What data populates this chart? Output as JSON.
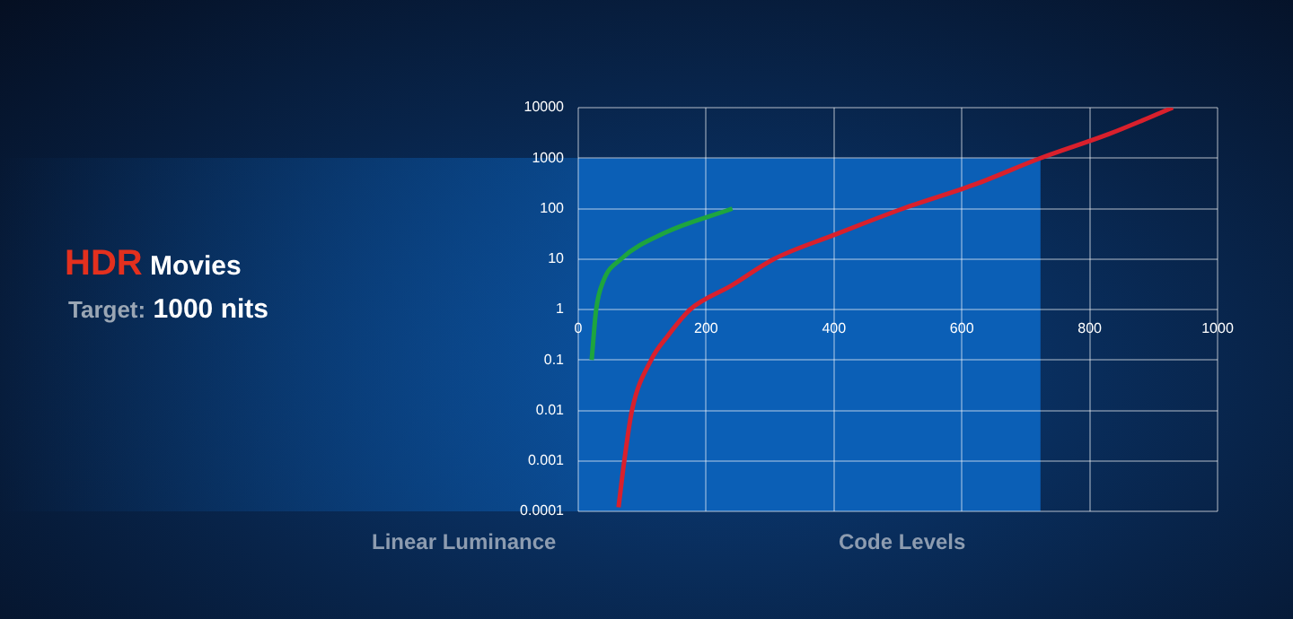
{
  "chart_data": {
    "type": "line",
    "title": "HDR Movies",
    "subtitle": "Target: 1000 nits",
    "xlabel": "Code Levels",
    "ylabel": "Linear Luminance",
    "log": "y",
    "xlim": [
      0,
      1000
    ],
    "xticks": [
      0,
      200,
      400,
      600,
      800,
      1000
    ],
    "ylim": [
      0.0001,
      10000
    ],
    "yticks": [
      0.0001,
      0.001,
      0.01,
      0.1,
      1,
      10,
      100,
      1000,
      10000
    ],
    "grid": true,
    "legend": false,
    "marker": "none",
    "line_style": "solid",
    "series": [
      {
        "type": "area",
        "color": "#0b5fb6",
        "x": [
          0,
          723
        ],
        "values": [
          1000,
          1000
        ]
      },
      {
        "color": "#d9202c",
        "x": [
          63,
          72,
          84,
          114,
          140,
          175,
          240,
          306,
          400,
          508,
          620,
          723,
          830,
          930
        ],
        "values": [
          0.00012,
          0.001,
          0.01,
          0.1,
          0.3,
          1,
          3,
          10,
          30,
          100,
          300,
          1000,
          3000,
          10000
        ]
      },
      {
        "color": "#1ea53e",
        "x": [
          21,
          28,
          39,
          67,
          133,
          241
        ],
        "values": [
          0.1,
          1,
          3.6,
          10,
          32,
          100
        ]
      }
    ]
  }
}
